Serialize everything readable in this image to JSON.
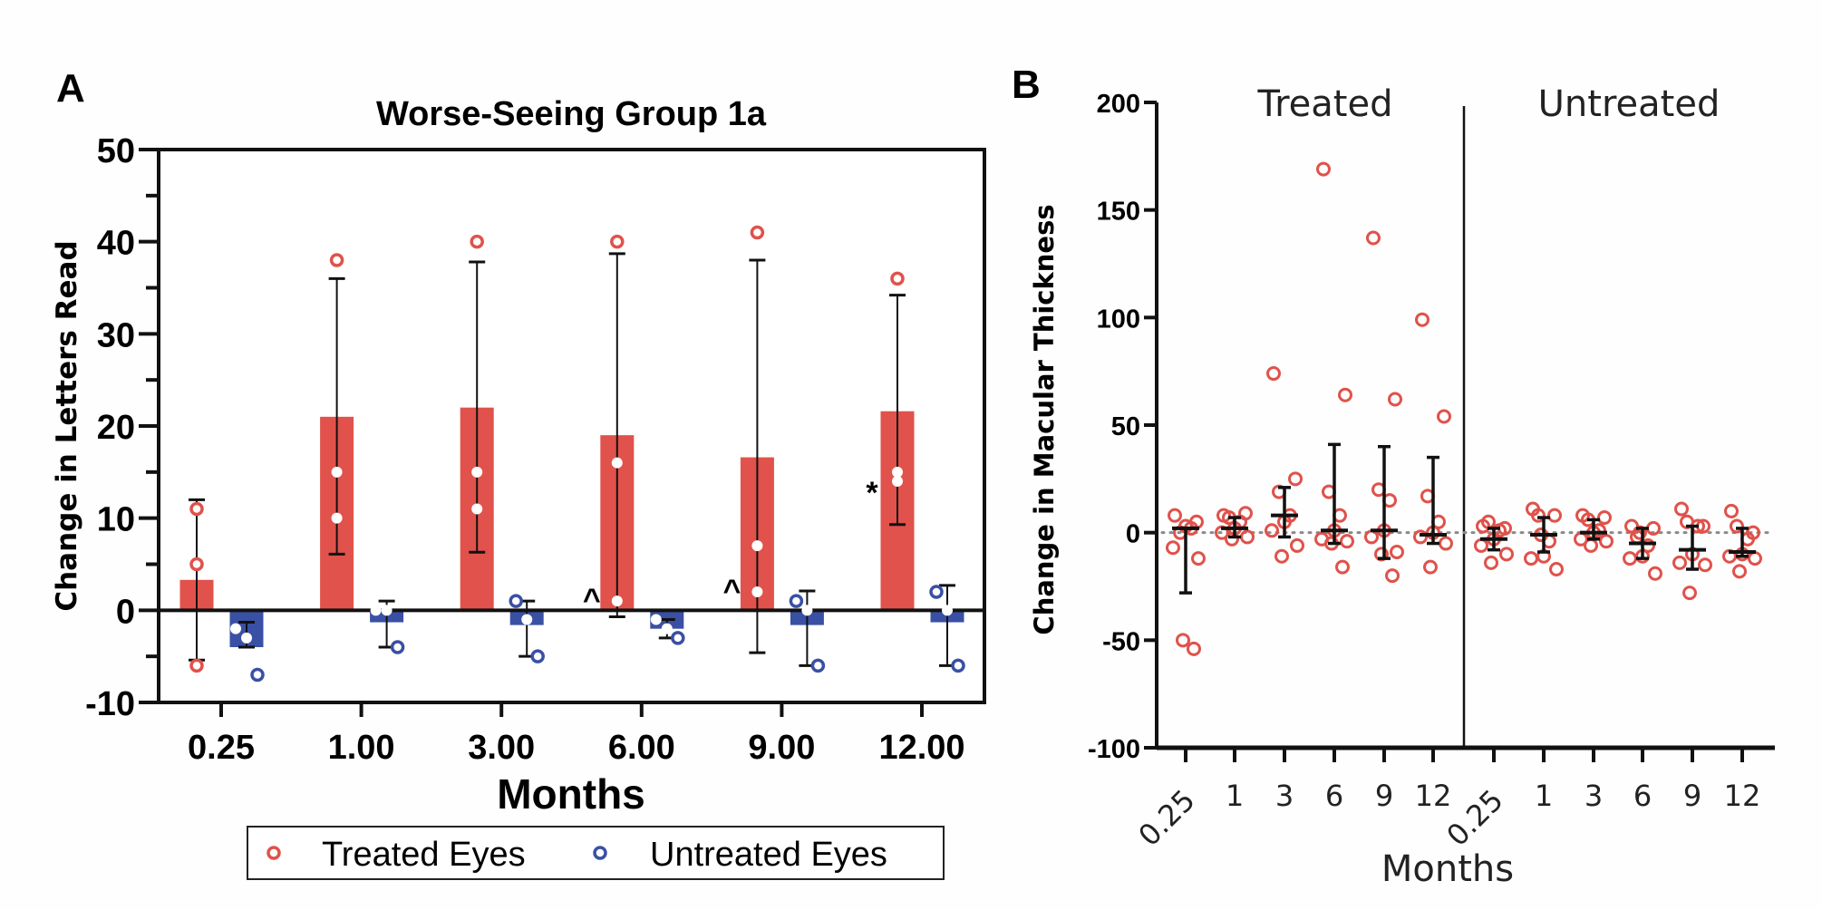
{
  "colors": {
    "treated": "#E0524B",
    "untreated": "#3A50A4",
    "axis": "#111111",
    "zero_line": "#8a8a8a"
  },
  "chart_data": [
    {
      "panel_label": "A",
      "type": "bar",
      "title": "Worse-Seeing Group 1a",
      "xlabel": "Months",
      "ylabel": "Change in Letters Read",
      "ylim": [
        -10,
        50
      ],
      "yticks": [
        -10,
        0,
        10,
        20,
        30,
        40,
        50
      ],
      "ytick_labels": [
        "-10",
        "0",
        "10",
        "20",
        "30",
        "40",
        "50"
      ],
      "minor_ytick_step": 5,
      "categories": [
        "0.25",
        "1.00",
        "3.00",
        "6.00",
        "9.00",
        "12.00"
      ],
      "grid": false,
      "legend": {
        "placement": "bottom-center",
        "entries": [
          "Treated Eyes",
          "Untreated Eyes"
        ]
      },
      "series": [
        {
          "name": "Treated Eyes",
          "color_key": "treated",
          "means": [
            3.3,
            21,
            22,
            19,
            16.6,
            21.6
          ],
          "error_low": [
            -5.4,
            6.1,
            6.3,
            -0.7,
            -4.6,
            9.3
          ],
          "error_high": [
            12,
            36,
            37.8,
            38.7,
            38,
            34.2
          ],
          "points": [
            [
              11,
              5,
              -6
            ],
            [
              38,
              15,
              10
            ],
            [
              40,
              15,
              11
            ],
            [
              40,
              16,
              1
            ],
            [
              41,
              7,
              2
            ],
            [
              36,
              14,
              15
            ]
          ]
        },
        {
          "name": "Untreated Eyes",
          "color_key": "untreated",
          "means": [
            -4,
            -1.3,
            -1.6,
            -2,
            -1.6,
            -1.3
          ],
          "error_low": [
            -4,
            -4,
            -5,
            -3,
            -6,
            -6
          ],
          "error_high": [
            -1.3,
            1,
            1,
            -1,
            2.1,
            2.7
          ],
          "points": [
            [
              -2,
              -3,
              -7
            ],
            [
              0,
              0,
              -4
            ],
            [
              1,
              -1,
              -5
            ],
            [
              -1,
              -2,
              -3
            ],
            [
              1,
              0,
              -6
            ],
            [
              2,
              0,
              -6
            ]
          ]
        }
      ],
      "annotations": [
        {
          "text": "^",
          "category": "6.00",
          "y": 1
        },
        {
          "text": "^",
          "category": "9.00",
          "y": 2
        },
        {
          "text": "*",
          "category": "12.00",
          "y": 13
        }
      ]
    },
    {
      "panel_label": "B",
      "type": "scatter",
      "xlabel": "Months",
      "ylabel": "Change in Macular Thickness",
      "ylim": [
        -100,
        200
      ],
      "yticks": [
        -100,
        -50,
        0,
        50,
        100,
        150,
        200
      ],
      "ytick_labels": [
        "-100",
        "-50",
        "0",
        "50",
        "100",
        "150",
        "200"
      ],
      "reference_line": 0,
      "grid": false,
      "groups": [
        {
          "name": "Treated",
          "categories": [
            "0.25",
            "1",
            "3",
            "6",
            "9",
            "12"
          ],
          "median": [
            2,
            2,
            8,
            1,
            1,
            -1
          ],
          "error_low": [
            -28,
            -2,
            -2,
            -5,
            -12,
            -5
          ],
          "error_high": [
            2,
            7,
            21,
            41,
            40,
            35
          ],
          "points": [
            [
              8,
              5,
              0,
              2,
              3,
              -7,
              -12,
              -50,
              -54
            ],
            [
              8,
              9,
              7,
              5,
              2,
              0,
              -2,
              -3
            ],
            [
              74,
              25,
              19,
              8,
              5,
              1,
              -6,
              -11
            ],
            [
              169,
              64,
              19,
              8,
              1,
              -3,
              -4,
              -5,
              -16
            ],
            [
              137,
              62,
              20,
              15,
              1,
              -2,
              -9,
              -10,
              -20
            ],
            [
              99,
              54,
              17,
              5,
              0,
              -2,
              -5,
              -16
            ]
          ]
        },
        {
          "name": "Untreated",
          "categories": [
            "0.25",
            "1",
            "3",
            "6",
            "9",
            "12"
          ],
          "median": [
            -3,
            -1,
            0,
            -5,
            -8,
            -9
          ],
          "error_low": [
            -8,
            -9,
            -3,
            -12,
            -17,
            -11
          ],
          "error_high": [
            2,
            7,
            6,
            2,
            3,
            2
          ],
          "points": [
            [
              3,
              2,
              5,
              1,
              -3,
              -6,
              -10,
              -14
            ],
            [
              11,
              8,
              8,
              -4,
              -11,
              -12,
              -17,
              -1
            ],
            [
              8,
              7,
              6,
              1,
              0,
              -3,
              -4,
              -6
            ],
            [
              3,
              2,
              -2,
              -6,
              -11,
              -12,
              -19,
              0
            ],
            [
              11,
              3,
              5,
              3,
              -10,
              -14,
              -15,
              -28
            ],
            [
              10,
              0,
              3,
              -3,
              -10,
              -11,
              -12,
              -18
            ]
          ]
        }
      ]
    }
  ]
}
